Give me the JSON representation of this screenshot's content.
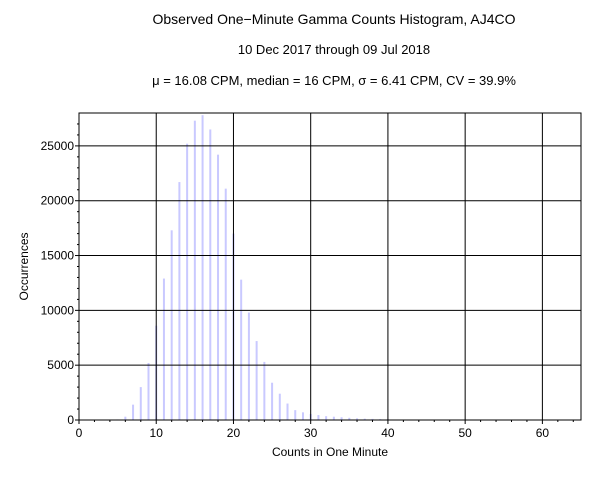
{
  "titles": {
    "title": "Observed One−Minute Gamma Counts Histogram, AJ4CO",
    "subtitle": "10 Dec 2017 through 09 Jul 2018",
    "stats_line": "μ = 16.08 CPM,   median = 16 CPM,   σ = 6.41 CPM,   CV = 39.9%"
  },
  "colors": {
    "bar": "#c9c9ff",
    "grid": "#000000",
    "frame": "#000000",
    "background": "#ffffff"
  },
  "chart_data": {
    "type": "bar",
    "title": "Observed One−Minute Gamma Counts Histogram, AJ4CO",
    "subtitle": "10 Dec 2017 through 09 Jul 2018",
    "xlabel": "Counts in One Minute",
    "ylabel": "Occurrences",
    "xlim": [
      0,
      65
    ],
    "ylim": [
      0,
      28000
    ],
    "grid": true,
    "xticks": [
      0,
      10,
      20,
      30,
      40,
      50,
      60
    ],
    "yticks": [
      0,
      5000,
      10000,
      15000,
      20000,
      25000
    ],
    "x": [
      5,
      6,
      7,
      8,
      9,
      10,
      11,
      12,
      13,
      14,
      15,
      16,
      17,
      18,
      19,
      20,
      21,
      22,
      23,
      24,
      25,
      26,
      27,
      28,
      29,
      30,
      31,
      32,
      33,
      34,
      35,
      36,
      37,
      38,
      39,
      40,
      41,
      42
    ],
    "values": [
      50,
      300,
      1400,
      3000,
      5200,
      8600,
      12900,
      17300,
      21700,
      25200,
      27300,
      27800,
      26500,
      24200,
      21100,
      17000,
      12800,
      9800,
      7200,
      5300,
      3400,
      2400,
      1500,
      900,
      700,
      550,
      450,
      350,
      300,
      250,
      200,
      150,
      120,
      100,
      80,
      60,
      40,
      30
    ]
  }
}
